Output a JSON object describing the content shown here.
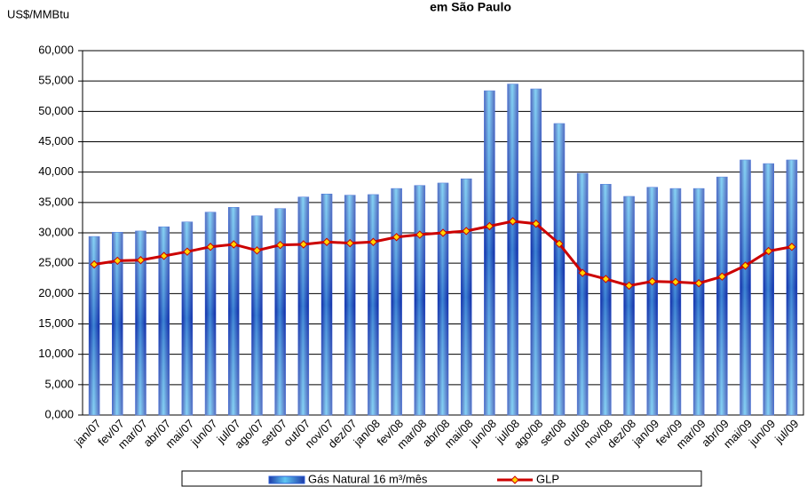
{
  "chart_data": {
    "type": "bar-line",
    "title": "em São Paulo",
    "y_label": "US$/MMBtu",
    "categories": [
      "jan/07",
      "fev/07",
      "mar/07",
      "abr/07",
      "mai/07",
      "jun/07",
      "jul/07",
      "ago/07",
      "set/07",
      "out/07",
      "nov/07",
      "dez/07",
      "jan/08",
      "fev/08",
      "mar/08",
      "abr/08",
      "mai/08",
      "jun/08",
      "jul/08",
      "ago/08",
      "set/08",
      "out/08",
      "nov/08",
      "dez/08",
      "jan/09",
      "fev/09",
      "mar/09",
      "abr/09",
      "mai/09",
      "jun/09",
      "jul/09"
    ],
    "series": [
      {
        "name": "Gás Natural 16 m³/mês",
        "type": "bar",
        "color": "#2f62d6",
        "values": [
          29.4,
          30.1,
          30.3,
          31.0,
          31.8,
          33.4,
          34.2,
          32.8,
          34.0,
          35.9,
          36.4,
          36.2,
          36.3,
          37.3,
          37.8,
          38.2,
          38.9,
          53.4,
          54.5,
          53.7,
          48.0,
          39.8,
          38.0,
          36.0,
          37.5,
          37.3,
          37.3,
          39.2,
          42.0,
          41.4,
          42.0
        ]
      },
      {
        "name": "GLP",
        "type": "line",
        "color": "#cc0000",
        "marker_color": "#ffd700",
        "values": [
          24.8,
          25.4,
          25.5,
          26.2,
          26.9,
          27.7,
          28.1,
          27.1,
          28.0,
          28.1,
          28.5,
          28.3,
          28.5,
          29.3,
          29.7,
          30.0,
          30.3,
          31.1,
          31.9,
          31.5,
          28.2,
          23.4,
          22.4,
          21.3,
          22.0,
          21.9,
          21.7,
          22.8,
          24.6,
          27.0,
          27.7
        ]
      }
    ],
    "ylim": [
      0,
      60
    ],
    "yticks": [
      {
        "value": 0,
        "label": "0,000"
      },
      {
        "value": 5,
        "label": "5,000"
      },
      {
        "value": 10,
        "label": "10,000"
      },
      {
        "value": 15,
        "label": "15,000"
      },
      {
        "value": 20,
        "label": "20,000"
      },
      {
        "value": 25,
        "label": "25,000"
      },
      {
        "value": 30,
        "label": "30,000"
      },
      {
        "value": 35,
        "label": "35,000"
      },
      {
        "value": 40,
        "label": "40,000"
      },
      {
        "value": 45,
        "label": "45,000"
      },
      {
        "value": 50,
        "label": "50,000"
      },
      {
        "value": 55,
        "label": "55,000"
      },
      {
        "value": 60,
        "label": "60,000"
      }
    ],
    "grid": true
  }
}
